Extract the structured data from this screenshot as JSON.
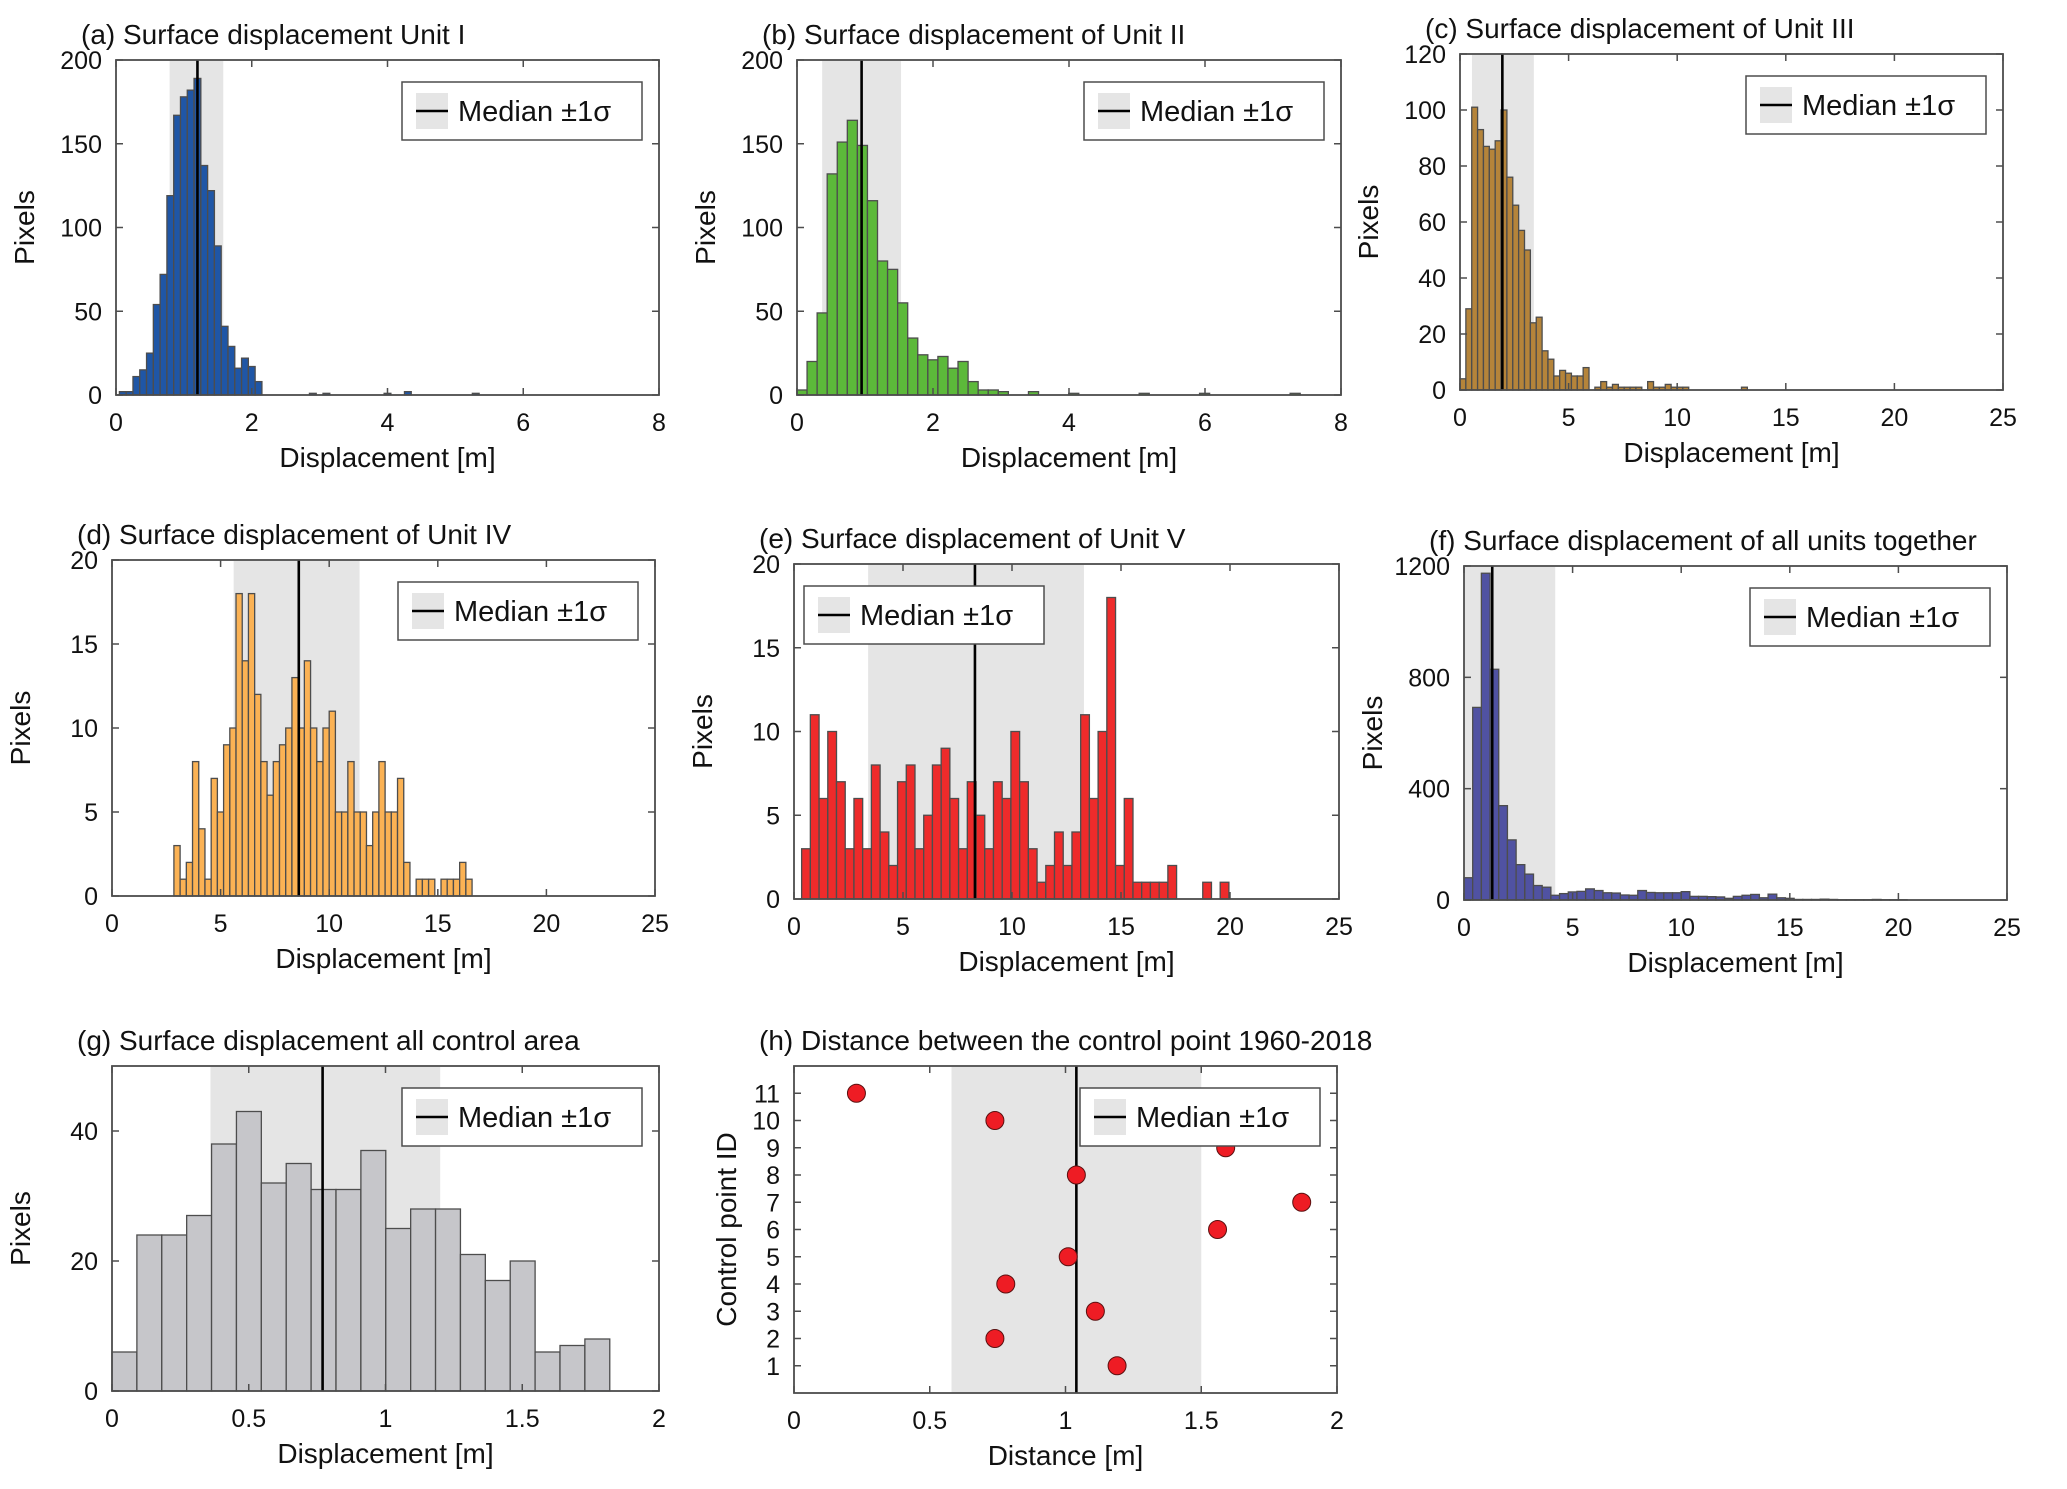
{
  "figure": {
    "legend_label": "Median ±1σ",
    "colors": {
      "shade": "#e5e5e5",
      "median_line": "#000000",
      "bar_edge": "#4d4d4d",
      "axis": "#4d4d4d"
    }
  },
  "chart_data": [
    {
      "id": "a",
      "type": "bar",
      "title": "(a) Surface displacement Unit I",
      "xlabel": "Displacement [m]",
      "ylabel": "Pixels",
      "xlim": [
        0,
        8
      ],
      "ylim": [
        0,
        200
      ],
      "xticks": [
        0,
        2,
        4,
        6,
        8
      ],
      "yticks": [
        0,
        50,
        100,
        150,
        200
      ],
      "color": "#1f56a6",
      "bin_start": 0.05,
      "bin_width": 0.1,
      "values": [
        2,
        2,
        11,
        15,
        25,
        54,
        72,
        119,
        167,
        178,
        182,
        189,
        137,
        122,
        89,
        41,
        29,
        16,
        22,
        17,
        8,
        0,
        0,
        0,
        0,
        0,
        0,
        0,
        1,
        0,
        1,
        0,
        0,
        0,
        0,
        0,
        0,
        0,
        0,
        1,
        0,
        0,
        2,
        0,
        0,
        0,
        0,
        0,
        0,
        0,
        0,
        0,
        1
      ],
      "median": 1.2,
      "sigma_range": [
        0.79,
        1.58
      ],
      "legend_position": "top-right"
    },
    {
      "id": "b",
      "type": "bar",
      "title": "(b) Surface displacement of Unit II",
      "xlabel": "Displacement [m]",
      "ylabel": "Pixels",
      "xlim": [
        0,
        8
      ],
      "ylim": [
        0,
        200
      ],
      "xticks": [
        0,
        2,
        4,
        6,
        8
      ],
      "yticks": [
        0,
        50,
        100,
        150,
        200
      ],
      "color": "#5cb93a",
      "bin_start": 0.0,
      "bin_width": 0.148,
      "values": [
        3,
        20,
        49,
        132,
        151,
        164,
        149,
        116,
        80,
        75,
        55,
        34,
        24,
        21,
        23,
        16,
        20,
        8,
        3,
        3,
        2,
        0,
        0,
        2,
        0,
        0,
        0,
        1,
        0,
        0,
        0,
        0,
        0,
        0,
        1,
        0,
        0,
        0,
        0,
        0,
        1,
        0,
        0,
        0,
        0,
        0,
        0,
        0,
        0,
        1
      ],
      "median": 0.95,
      "sigma_range": [
        0.37,
        1.53
      ],
      "legend_position": "top-right"
    },
    {
      "id": "c",
      "type": "bar",
      "title": "(c) Surface displacement of Unit III",
      "xlabel": "Displacement [m]",
      "ylabel": "Pixels",
      "xlim": [
        0,
        25
      ],
      "ylim": [
        0,
        120
      ],
      "xticks": [
        0,
        5,
        10,
        15,
        20,
        25
      ],
      "yticks": [
        0,
        20,
        40,
        60,
        80,
        100,
        120
      ],
      "color": "#b5843a",
      "bin_start": 0.0,
      "bin_width": 0.27,
      "values": [
        4,
        29,
        101,
        93,
        87,
        86,
        89,
        100,
        76,
        66,
        57,
        50,
        24,
        26,
        14,
        11,
        5,
        7,
        6,
        5,
        5,
        8,
        0,
        1,
        3,
        1,
        2,
        1,
        1,
        1,
        1,
        0,
        3,
        1,
        1,
        2,
        1,
        1,
        1,
        0,
        0,
        0,
        0,
        0,
        0,
        0,
        0,
        0,
        1
      ],
      "median": 1.95,
      "sigma_range": [
        0.55,
        3.4
      ],
      "legend_position": "top-right"
    },
    {
      "id": "d",
      "type": "bar",
      "title": "(d) Surface displacement of Unit IV",
      "xlabel": "Displacement [m]",
      "ylabel": "Pixels",
      "xlim": [
        0,
        25
      ],
      "ylim": [
        0,
        20
      ],
      "xticks": [
        0,
        5,
        10,
        15,
        20,
        25
      ],
      "yticks": [
        0,
        5,
        10,
        15,
        20
      ],
      "color": "#fbb254",
      "bin_start": 2.85,
      "bin_width": 0.286,
      "values": [
        3,
        1,
        2,
        8,
        4,
        1,
        7,
        5,
        9,
        10,
        18,
        14,
        18,
        12,
        8,
        6,
        8,
        9,
        10,
        13,
        10,
        14,
        10,
        8,
        10,
        11,
        5,
        5,
        8,
        5,
        5,
        3,
        5,
        8,
        5,
        5,
        7,
        2,
        0,
        1,
        1,
        1,
        0,
        1,
        1,
        1,
        2,
        1
      ],
      "median": 8.6,
      "sigma_range": [
        5.6,
        11.4
      ],
      "legend_position": "top-right"
    },
    {
      "id": "e",
      "type": "bar",
      "title": "(e) Surface displacement of Unit V",
      "xlabel": "Displacement [m]",
      "ylabel": "Pixels",
      "xlim": [
        0,
        25
      ],
      "ylim": [
        0,
        20
      ],
      "xticks": [
        0,
        5,
        10,
        15,
        20,
        25
      ],
      "yticks": [
        0,
        5,
        10,
        15,
        20
      ],
      "color": "#ee2b2b",
      "bin_start": 0.35,
      "bin_width": 0.4,
      "values": [
        3,
        11,
        6,
        10,
        7,
        3,
        6,
        3,
        8,
        4,
        2,
        7,
        8,
        3,
        5,
        8,
        9,
        6,
        3,
        7,
        5,
        3,
        7,
        6,
        10,
        7,
        3,
        1,
        2,
        4,
        2,
        4,
        11,
        6,
        10,
        18,
        2,
        6,
        1,
        1,
        1,
        1,
        2,
        0,
        0,
        0,
        1,
        0,
        1
      ],
      "median": 8.3,
      "sigma_range": [
        3.4,
        13.3
      ],
      "legend_position": "top-left"
    },
    {
      "id": "f",
      "type": "bar",
      "title": "(f) Surface displacement of all units together",
      "xlabel": "Displacement [m]",
      "ylabel": "Pixels",
      "xlim": [
        0,
        25
      ],
      "ylim": [
        0,
        1200
      ],
      "xticks": [
        0,
        5,
        10,
        15,
        20,
        25
      ],
      "yticks": [
        0,
        400,
        800,
        1200
      ],
      "color": "#5052a2",
      "bin_start": 0.0,
      "bin_width": 0.4,
      "values": [
        80,
        692,
        1174,
        829,
        339,
        216,
        127,
        93,
        52,
        46,
        17,
        23,
        29,
        31,
        40,
        34,
        26,
        25,
        18,
        17,
        34,
        27,
        26,
        26,
        26,
        30,
        13,
        13,
        12,
        11,
        6,
        13,
        17,
        20,
        8,
        21,
        8,
        6,
        2,
        2,
        2,
        3,
        2,
        1,
        1,
        1,
        1,
        2,
        1,
        1,
        1
      ],
      "median": 1.3,
      "sigma_range": [
        0.0,
        4.2
      ],
      "legend_position": "top-right"
    },
    {
      "id": "g",
      "type": "bar",
      "title": "(g) Surface displacement all control area",
      "xlabel": "Displacement [m]",
      "ylabel": "Pixels",
      "xlim": [
        0,
        2
      ],
      "ylim": [
        0,
        50
      ],
      "xticks": [
        0,
        0.5,
        1,
        1.5,
        2
      ],
      "yticks": [
        0,
        20,
        40
      ],
      "color": "#c6c6ca",
      "bin_start": 0.0,
      "bin_width": 0.091,
      "values": [
        6,
        24,
        24,
        27,
        38,
        43,
        32,
        35,
        31,
        31,
        37,
        25,
        28,
        28,
        21,
        17,
        20,
        6,
        7,
        8
      ],
      "median": 0.77,
      "sigma_range": [
        0.36,
        1.2
      ],
      "legend_position": "top-right"
    },
    {
      "id": "h",
      "type": "scatter",
      "title": "(h) Distance between the control point 1960-2018",
      "xlabel": "Distance [m]",
      "ylabel": "Control point ID",
      "xlim": [
        0,
        2
      ],
      "ylim": [
        0,
        12
      ],
      "xticks": [
        0,
        0.5,
        1,
        1.5,
        2
      ],
      "yticks": [
        1,
        2,
        3,
        4,
        5,
        6,
        7,
        8,
        9,
        10,
        11
      ],
      "color": "#ee1c24",
      "points": [
        {
          "id": 1,
          "x": 1.19
        },
        {
          "id": 2,
          "x": 0.74
        },
        {
          "id": 3,
          "x": 1.11
        },
        {
          "id": 4,
          "x": 0.78
        },
        {
          "id": 5,
          "x": 1.01
        },
        {
          "id": 6,
          "x": 1.56
        },
        {
          "id": 7,
          "x": 1.87
        },
        {
          "id": 8,
          "x": 1.04
        },
        {
          "id": 9,
          "x": 1.59
        },
        {
          "id": 10,
          "x": 0.74
        },
        {
          "id": 11,
          "x": 0.23
        }
      ],
      "median": 1.04,
      "sigma_range": [
        0.58,
        1.5
      ],
      "legend_position": "top-right"
    }
  ]
}
